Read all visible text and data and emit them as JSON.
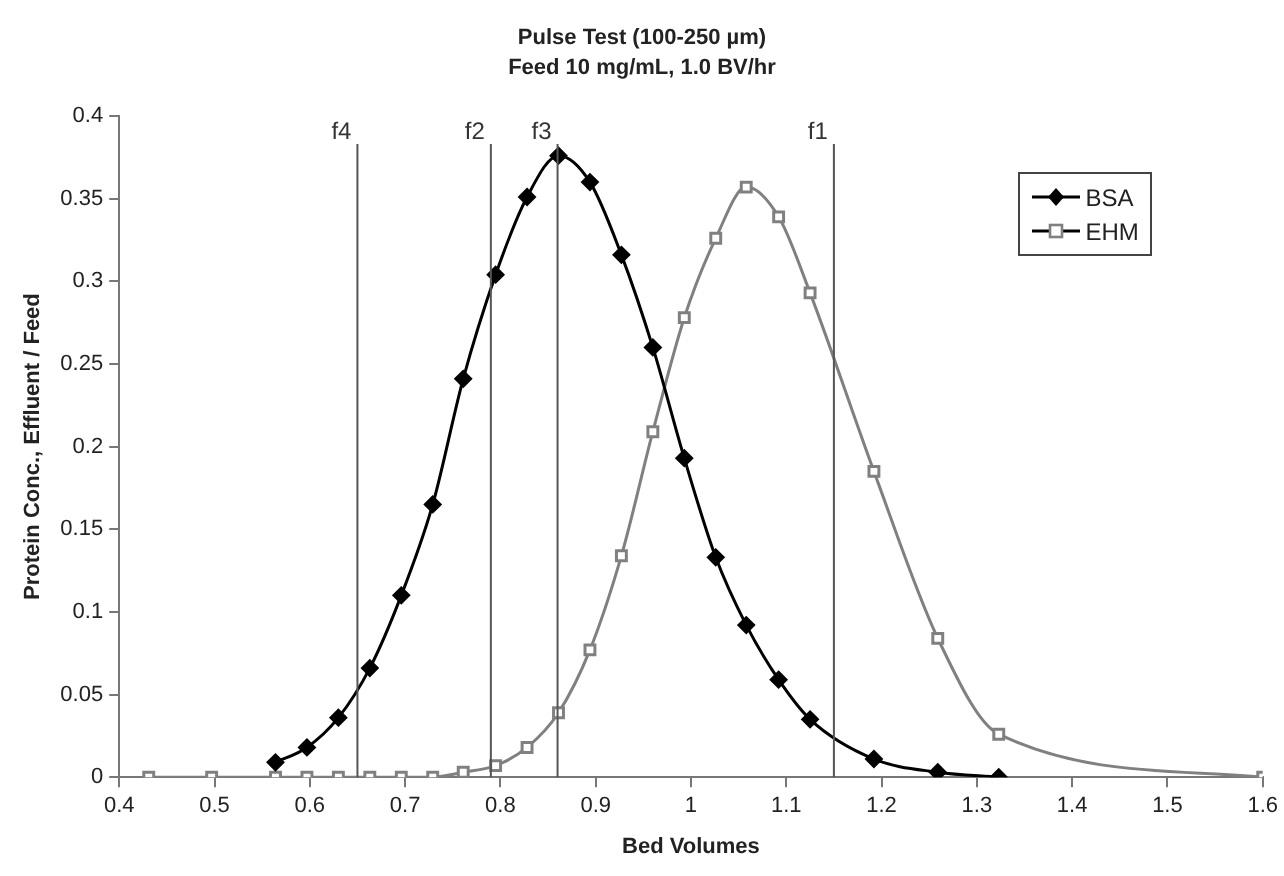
{
  "chart_data": {
    "type": "line",
    "title": "Pulse Test (100-250 µm)",
    "subtitle": "Feed 10 mg/mL, 1.0 BV/hr",
    "xlabel": "Bed Volumes",
    "ylabel": "Protein Conc., Effluent / Feed",
    "xlim": [
      0.4,
      1.6
    ],
    "xticks": [
      0.4,
      0.5,
      0.6,
      0.7,
      0.8,
      0.9,
      1,
      1.1,
      1.2,
      1.3,
      1.4,
      1.5,
      1.6
    ],
    "ylim": [
      0,
      0.4
    ],
    "yticks": [
      0,
      0.05,
      0.1,
      0.15,
      0.2,
      0.25,
      0.3,
      0.35,
      0.4
    ],
    "grid": false,
    "legend": "top right",
    "line_style": "solid",
    "series": [
      {
        "name": "BSA",
        "color": "#000000",
        "marker": "diamond",
        "x": [
          0.564,
          0.597,
          0.63,
          0.663,
          0.696,
          0.729,
          0.761,
          0.795,
          0.828,
          0.861,
          0.894,
          0.927,
          0.96,
          0.993,
          1.026,
          1.058,
          1.092,
          1.125,
          1.192,
          1.259,
          1.323
        ],
        "values": [
          0.009,
          0.018,
          0.036,
          0.066,
          0.11,
          0.165,
          0.241,
          0.304,
          0.351,
          0.376,
          0.36,
          0.316,
          0.26,
          0.193,
          0.133,
          0.092,
          0.059,
          0.035,
          0.011,
          0.003,
          0
        ]
      },
      {
        "name": "EHM",
        "color": "#808080",
        "marker": "square",
        "x": [
          0.431,
          0.497,
          0.564,
          0.597,
          0.63,
          0.663,
          0.696,
          0.729,
          0.761,
          0.795,
          0.828,
          0.861,
          0.894,
          0.927,
          0.96,
          0.993,
          1.026,
          1.058,
          1.092,
          1.125,
          1.192,
          1.259,
          1.323,
          1.6
        ],
        "values": [
          0,
          0,
          0,
          0,
          0,
          0,
          0,
          0,
          0.003,
          0.007,
          0.018,
          0.039,
          0.077,
          0.134,
          0.209,
          0.278,
          0.326,
          0.357,
          0.339,
          0.293,
          0.185,
          0.084,
          0.026,
          0
        ]
      }
    ],
    "ref_lines": [
      {
        "axis": "x",
        "value": 0.65,
        "label": "f4",
        "color": "#555555"
      },
      {
        "axis": "x",
        "value": 0.79,
        "label": "f2",
        "color": "#555555"
      },
      {
        "axis": "x",
        "value": 0.86,
        "label": "f3",
        "color": "#555555"
      },
      {
        "axis": "x",
        "value": 1.15,
        "label": "f1",
        "color": "#555555"
      }
    ]
  }
}
